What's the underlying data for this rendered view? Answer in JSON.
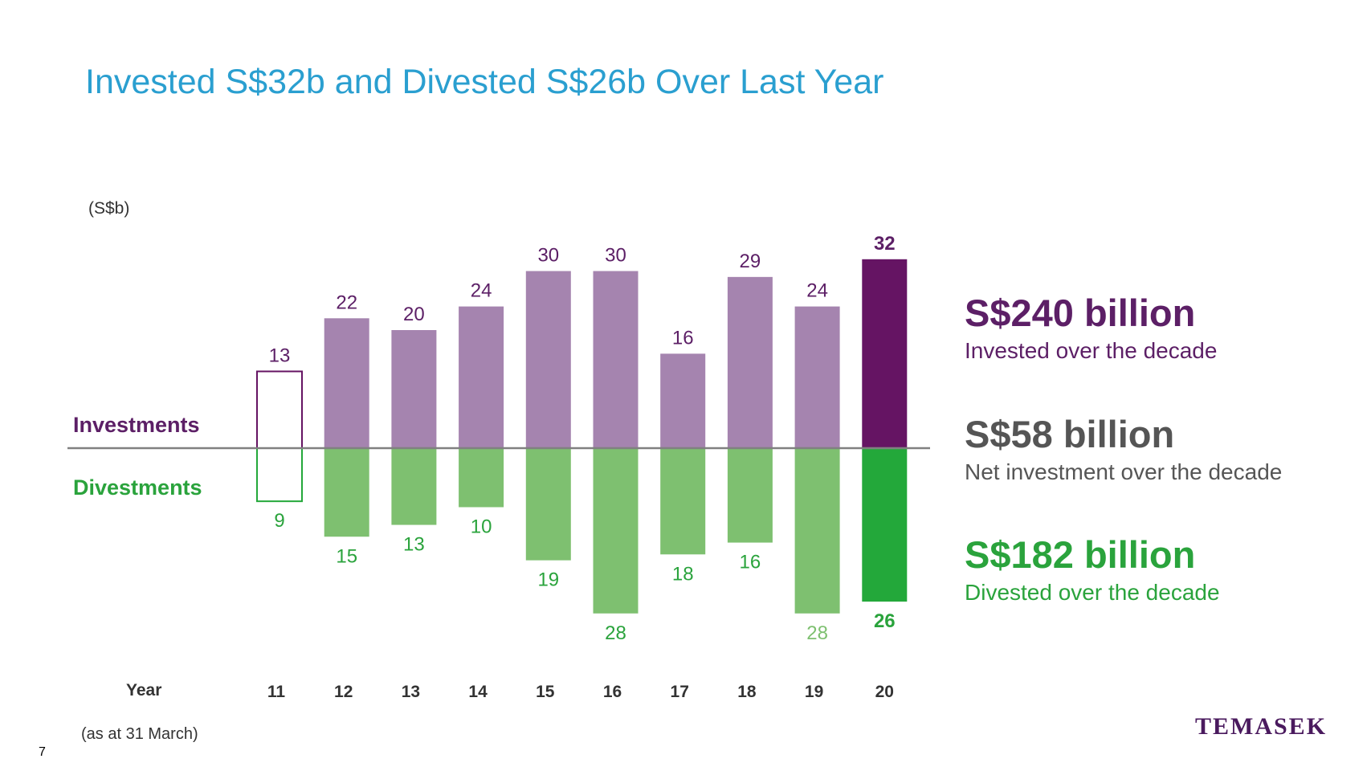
{
  "title": "Invested S$32b and Divested S$26b Over Last Year",
  "unit": "(S$b)",
  "labels": {
    "investments": "Investments",
    "divestments": "Divestments",
    "year": "Year",
    "footnote": "(as at 31 March)",
    "page": "7",
    "logo": "TEMASEK"
  },
  "stats": [
    {
      "value": "S$240 billion",
      "desc": "Invested over the decade",
      "color": "#5c1f66"
    },
    {
      "value": "S$58 billion",
      "desc": "Net investment over the decade",
      "color": "#555555"
    },
    {
      "value": "S$182 billion",
      "desc": "Divested over the decade",
      "color": "#2aa33c"
    }
  ],
  "colors": {
    "invest": "#a584af",
    "invest_highlight": "#651463",
    "invest_text": "#5c1f66",
    "divest": "#7ec070",
    "divest_highlight": "#23a83a",
    "divest_text": "#2aa33c"
  },
  "chart_data": {
    "type": "bar",
    "categories": [
      "11",
      "12",
      "13",
      "14",
      "15",
      "16",
      "17",
      "18",
      "19",
      "20"
    ],
    "series": [
      {
        "name": "Investments",
        "values": [
          13,
          22,
          20,
          24,
          30,
          30,
          16,
          29,
          24,
          32
        ]
      },
      {
        "name": "Divestments",
        "values": [
          9,
          15,
          13,
          10,
          19,
          28,
          18,
          16,
          28,
          26
        ]
      }
    ],
    "xlabel": "Year",
    "ylabel": "(S$b)",
    "grid": false,
    "legend": "left"
  }
}
